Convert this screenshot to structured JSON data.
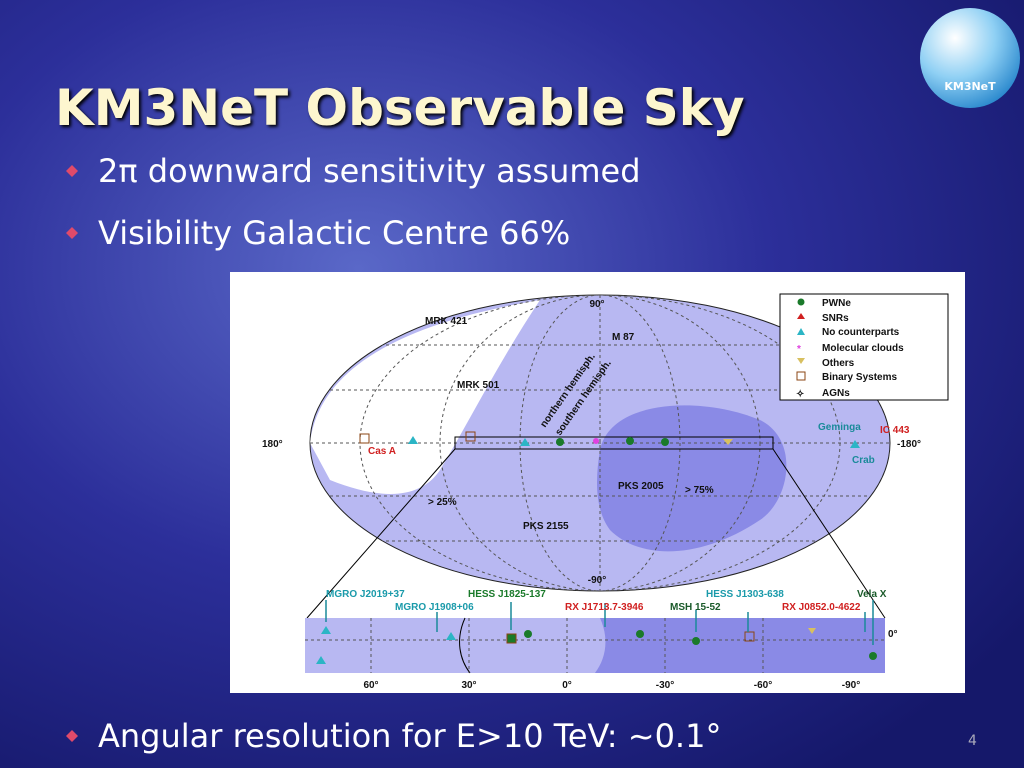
{
  "title": "KM3NeT Observable Sky",
  "logo": "KM3NeT",
  "bullets": [
    "2π downward sensitivity assumed",
    "Visibility Galactic Centre 66%",
    "Angular resolution for E>10 TeV: ~0.1°"
  ],
  "figure": {
    "sky_map": {
      "axis_labels": [
        "90°",
        "180°",
        "-180°",
        "-90°"
      ],
      "sources": [
        "MRK 421",
        "M 87",
        "MRK 501",
        "Cas A",
        "Geminga",
        "IC 443",
        "Crab",
        "PKS 2005",
        "PKS 2155"
      ],
      "hemisphere_labels": [
        "northern hemisph.",
        "southern hemisph."
      ],
      "visibility_labels": [
        "> 25%",
        "> 75%"
      ]
    },
    "legend": [
      "PWNe",
      "SNRs",
      "No counterparts",
      "Molecular clouds",
      "Others",
      "Binary Systems",
      "AGNs"
    ],
    "strip": {
      "sources": [
        "MGRO J2019+37",
        "MGRO J1908+06",
        "HESS J1825-137",
        "RX J1713.7-3946",
        "MSH 15-52",
        "HESS J1303-638",
        "RX J0852.0-4622",
        "Vela X"
      ],
      "latitude_label": "0°",
      "longitude_labels": [
        "60°",
        "30°",
        "0°",
        "-30°",
        "-60°",
        "-90°"
      ]
    }
  },
  "page_number": "4"
}
